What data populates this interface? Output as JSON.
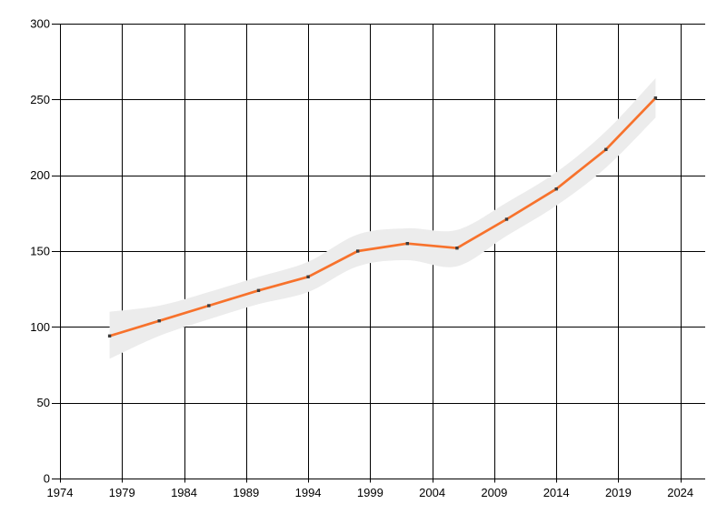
{
  "page": {
    "background": "#ffffff"
  },
  "chart_data": {
    "type": "line",
    "title": "",
    "xlabel": "",
    "ylabel": "",
    "x": [
      1978,
      1982,
      1986,
      1990,
      1994,
      1998,
      2002,
      2006,
      2010,
      2014,
      2018,
      2022
    ],
    "series": [
      {
        "name": "value",
        "color": "#f7722c",
        "values": [
          94,
          104,
          114,
          124,
          133,
          150,
          155,
          152,
          171,
          191,
          217,
          251
        ]
      }
    ],
    "band": {
      "name": "confidence-band",
      "color": "#ececec",
      "upper": [
        110,
        114,
        123,
        133,
        143,
        161,
        165,
        164,
        182,
        202,
        229,
        264
      ],
      "lower": [
        79,
        94,
        105,
        115,
        123,
        140,
        144,
        140,
        160,
        180,
        205,
        238
      ]
    },
    "marker": {
      "shape": "square",
      "color": "#3c3c3c",
      "size": 3.4
    },
    "x_axis": {
      "min": 1974,
      "max": 2026,
      "tick_step": 5,
      "tick_labels": [
        "1974",
        "1979",
        "1984",
        "1989",
        "1994",
        "1999",
        "2004",
        "2009",
        "2014",
        "2019",
        "2024"
      ]
    },
    "y_axis": {
      "min": 0,
      "max": 300,
      "tick_step": 50,
      "tick_labels": [
        "0",
        "50",
        "100",
        "150",
        "200",
        "250",
        "300"
      ]
    },
    "grid": {
      "show": true,
      "color": "#000000"
    },
    "legend": {
      "position": "none"
    }
  }
}
